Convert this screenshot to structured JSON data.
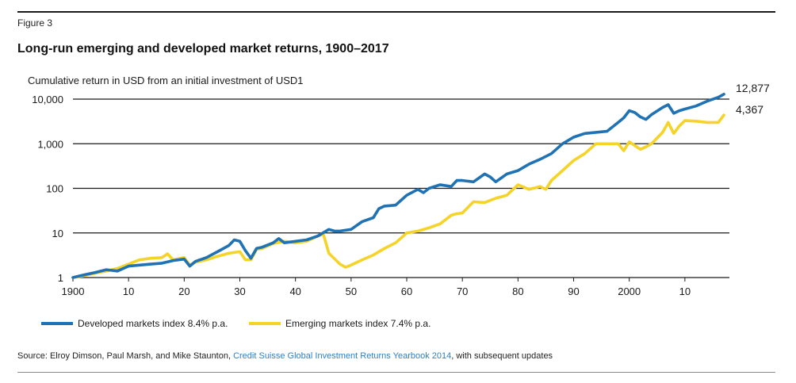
{
  "figure_label": "Figure 3",
  "title": "Long-run emerging and developed market returns, 1900–2017",
  "source": {
    "prefix": "Source: Elroy Dimson, Paul Marsh, and Mike Staunton, ",
    "link": "Credit Suisse Global Investment Returns Yearbook 2014",
    "suffix": ", with subsequent updates"
  },
  "colors": {
    "developed": "#1f72b4",
    "emerging": "#f5d327",
    "grid": "#1a1a1a"
  },
  "chart_data": {
    "type": "line",
    "title": "Long-run emerging and developed market returns, 1900–2017",
    "ylabel": "Cumulative return in USD from an initial investment  of USD1",
    "xlabel": "",
    "yscale": "log",
    "ylim": [
      1,
      10000
    ],
    "xlim": [
      1900,
      2018
    ],
    "y_ticks": [
      1,
      10,
      100,
      1000,
      10000
    ],
    "y_tick_labels": [
      "1",
      "10",
      "100",
      "1,000",
      "10,000"
    ],
    "x_ticks": [
      1900,
      1910,
      1920,
      1930,
      1940,
      1950,
      1960,
      1970,
      1980,
      1990,
      2000,
      2010
    ],
    "x_tick_labels": [
      "1900",
      "10",
      "20",
      "30",
      "40",
      "50",
      "60",
      "70",
      "80",
      "90",
      "2000",
      "10"
    ],
    "grid": "horizontal",
    "legend_position": "bottom",
    "series": [
      {
        "name": "Developed markets index 8.4% p.a.",
        "end_label": "12,877",
        "x": [
          1900,
          1902,
          1904,
          1906,
          1908,
          1910,
          1912,
          1914,
          1916,
          1918,
          1920,
          1921,
          1922,
          1924,
          1926,
          1928,
          1929,
          1930,
          1931,
          1932,
          1933,
          1934,
          1936,
          1937,
          1938,
          1940,
          1942,
          1944,
          1946,
          1947,
          1948,
          1950,
          1952,
          1954,
          1955,
          1956,
          1958,
          1960,
          1962,
          1963,
          1964,
          1966,
          1968,
          1969,
          1970,
          1972,
          1974,
          1975,
          1976,
          1978,
          1980,
          1982,
          1984,
          1986,
          1988,
          1990,
          1992,
          1994,
          1996,
          1998,
          1999,
          2000,
          2001,
          2002,
          2003,
          2004,
          2006,
          2007,
          2008,
          2009,
          2010,
          2012,
          2014,
          2016,
          2017
        ],
        "values": [
          1,
          1.15,
          1.3,
          1.5,
          1.4,
          1.8,
          1.9,
          2.0,
          2.1,
          2.4,
          2.6,
          1.8,
          2.3,
          2.8,
          3.8,
          5.2,
          7,
          6.5,
          4,
          2.7,
          4.5,
          4.8,
          6,
          7.5,
          6,
          6.5,
          7,
          8.5,
          12,
          11,
          11,
          12,
          18,
          22,
          35,
          40,
          42,
          70,
          95,
          80,
          100,
          120,
          110,
          150,
          150,
          140,
          210,
          180,
          140,
          210,
          250,
          350,
          450,
          600,
          1000,
          1400,
          1700,
          1800,
          1900,
          3000,
          3800,
          5500,
          5000,
          4000,
          3500,
          4500,
          6500,
          7500,
          4800,
          5500,
          6000,
          7000,
          9000,
          11000,
          12877
        ]
      },
      {
        "name": "Emerging markets index 7.4% p.a.",
        "end_label": "4,367",
        "x": [
          1900,
          1902,
          1904,
          1906,
          1908,
          1910,
          1912,
          1914,
          1916,
          1917,
          1918,
          1920,
          1921,
          1922,
          1924,
          1926,
          1928,
          1930,
          1931,
          1932,
          1933,
          1934,
          1936,
          1938,
          1940,
          1942,
          1944,
          1945,
          1946,
          1948,
          1949,
          1950,
          1952,
          1954,
          1956,
          1958,
          1960,
          1962,
          1964,
          1966,
          1968,
          1969,
          1970,
          1972,
          1974,
          1976,
          1978,
          1980,
          1982,
          1984,
          1985,
          1986,
          1988,
          1990,
          1992,
          1994,
          1996,
          1998,
          1999,
          2000,
          2002,
          2003,
          2004,
          2006,
          2007,
          2008,
          2009,
          2010,
          2012,
          2014,
          2016,
          2017
        ],
        "values": [
          1,
          1.1,
          1.25,
          1.4,
          1.6,
          2.0,
          2.5,
          2.7,
          2.8,
          3.4,
          2.5,
          2.8,
          1.9,
          2.2,
          2.5,
          3.0,
          3.5,
          3.8,
          2.5,
          2.5,
          4.3,
          4.5,
          5.8,
          6.5,
          6.0,
          6.5,
          8.5,
          9.5,
          3.5,
          2.0,
          1.7,
          1.9,
          2.5,
          3.2,
          4.5,
          6,
          10,
          11,
          13,
          16,
          25,
          27,
          28,
          50,
          48,
          60,
          70,
          120,
          95,
          110,
          95,
          150,
          250,
          420,
          600,
          1000,
          1000,
          1000,
          700,
          1100,
          750,
          850,
          1000,
          1800,
          3000,
          1700,
          2500,
          3300,
          3200,
          3000,
          3000,
          4367
        ]
      }
    ]
  }
}
